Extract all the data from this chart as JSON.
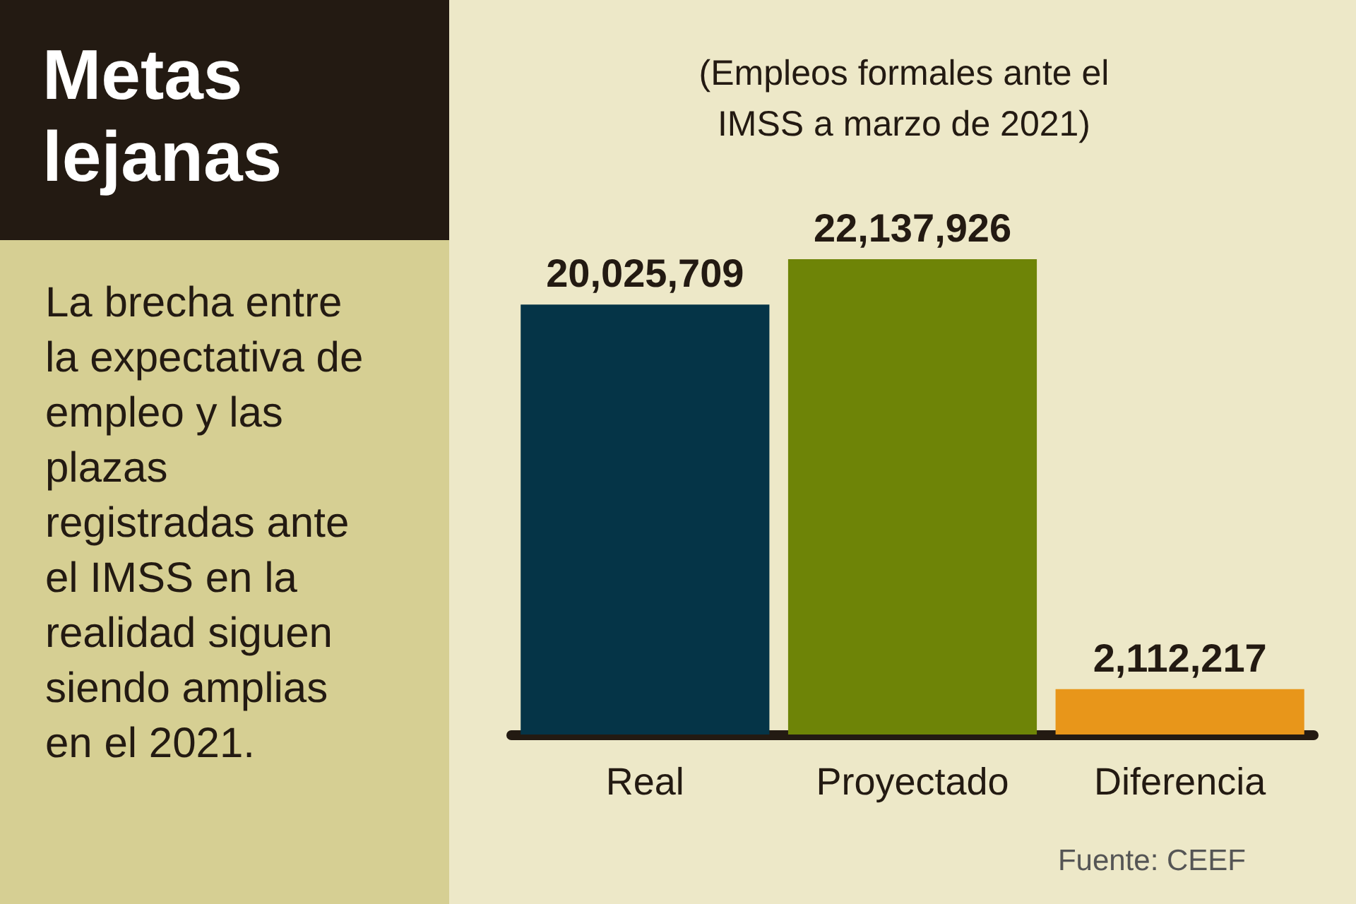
{
  "chart_data": {
    "type": "bar",
    "title": "Metas lejanas",
    "subtitle": "La brecha entre la expectativa de empleo y las plazas registradas ante el IMSS en la realidad siguen siendo amplias en el 2021.",
    "annotations": [
      "(Empleos formales ante el IMSS a marzo de 2021)",
      "Fuente: CEEF"
    ],
    "categories": [
      "Real",
      "Proyectado",
      "Diferencia"
    ],
    "values": [
      20025709,
      22137926,
      2112217
    ],
    "colors": [
      "#053447",
      "#6e8407",
      "#e8961a"
    ],
    "value_labels": [
      "20,025,709",
      "22,137,926",
      "2,112,217"
    ],
    "tick_labels": "x",
    "grid": false
  }
}
